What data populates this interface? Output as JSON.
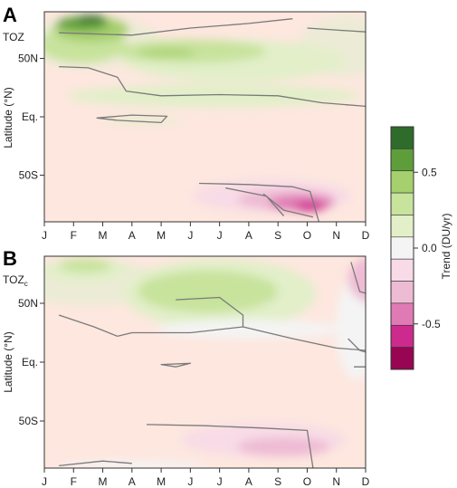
{
  "chart_data": [
    {
      "type": "heatmap",
      "panel_label": "A",
      "variable": "TOZ",
      "variable_sub": "",
      "ylabel": "Latitude (°N)",
      "x_tick_labels": [
        "J",
        "F",
        "M",
        "A",
        "M",
        "J",
        "J",
        "A",
        "S",
        "O",
        "N",
        "D"
      ],
      "y_tick_labels": [
        "50N",
        "Eq.",
        "50S"
      ],
      "blobs": [
        {
          "color": "#ecebd6",
          "cx": 1.5,
          "cy": 64,
          "rx": 2.5,
          "ry": 22
        },
        {
          "color": "#ecebd6",
          "cx": 10.3,
          "cy": 60,
          "rx": 1.6,
          "ry": 26
        },
        {
          "color": "#e2efc9",
          "cx": 6.5,
          "cy": 48,
          "rx": 3.8,
          "ry": 18
        },
        {
          "color": "#e2efc9",
          "cx": 5.8,
          "cy": 18,
          "rx": 5.0,
          "ry": 10
        },
        {
          "color": "#c7e39c",
          "cx": 5.0,
          "cy": 56,
          "rx": 2.6,
          "ry": 10
        },
        {
          "color": "#c7e39c",
          "cx": 1.3,
          "cy": 62,
          "rx": 1.5,
          "ry": 16
        },
        {
          "color": "#a6cf6d",
          "cx": 1.6,
          "cy": 75,
          "rx": 1.3,
          "ry": 11
        },
        {
          "color": "#5e9e3a",
          "cx": 1.3,
          "cy": 80,
          "rx": 0.9,
          "ry": 6
        },
        {
          "color": "#2f6b2a",
          "cx": 1.6,
          "cy": 84,
          "rx": 0.5,
          "ry": 3
        },
        {
          "color": "#a6cf6d",
          "cx": 4.2,
          "cy": 55,
          "rx": 1.0,
          "ry": 3
        },
        {
          "color": "#e2efc9",
          "cx": 3.4,
          "cy": -3,
          "rx": 1.3,
          "ry": 2.5
        },
        {
          "color": "#f8dbe6",
          "cx": 7.8,
          "cy": -68,
          "rx": 2.7,
          "ry": 14
        },
        {
          "color": "#eebbd4",
          "cx": 8.3,
          "cy": -71,
          "rx": 1.7,
          "ry": 9
        },
        {
          "color": "#e07ab5",
          "cx": 8.8,
          "cy": -74,
          "rx": 1.1,
          "ry": 7
        },
        {
          "color": "#cc2a8c",
          "cx": 9.1,
          "cy": -77,
          "rx": 0.5,
          "ry": 4
        }
      ],
      "contours": [
        [
          [
            0.5,
            72
          ],
          [
            3,
            70
          ],
          [
            5,
            76
          ],
          [
            7,
            80
          ],
          [
            8.5,
            84
          ]
        ],
        [
          [
            9,
            76
          ],
          [
            10.2,
            74
          ],
          [
            11.5,
            72
          ]
        ],
        [
          [
            0.5,
            43
          ],
          [
            1.5,
            42
          ],
          [
            2.5,
            34
          ],
          [
            2.8,
            22
          ],
          [
            4,
            18
          ],
          [
            6,
            19
          ],
          [
            8,
            18
          ],
          [
            9.5,
            12
          ],
          [
            11.5,
            8
          ]
        ],
        [
          [
            4,
            -5
          ],
          [
            2.5,
            -3
          ],
          [
            1.8,
            -1
          ],
          [
            3,
            1.5
          ],
          [
            4.2,
            0.5
          ],
          [
            4,
            -5
          ]
        ],
        [
          [
            5.3,
            -57
          ],
          [
            7,
            -58
          ],
          [
            8.5,
            -60
          ],
          [
            9.1,
            -64
          ],
          [
            9.4,
            -90
          ]
        ],
        [
          [
            6.2,
            -61
          ],
          [
            7.6,
            -68
          ],
          [
            8.2,
            -85
          ]
        ],
        [
          [
            7.5,
            -66
          ],
          [
            8.2,
            -80
          ],
          [
            9.2,
            -86
          ]
        ]
      ]
    },
    {
      "type": "heatmap",
      "panel_label": "B",
      "variable": "TOZ",
      "variable_sub": "c",
      "ylabel": "Latitude (°N)",
      "x_tick_labels": [
        "J",
        "F",
        "M",
        "A",
        "M",
        "J",
        "J",
        "A",
        "S",
        "O",
        "N",
        "D"
      ],
      "y_tick_labels": [
        "50N",
        "Eq.",
        "50S"
      ],
      "blobs": [
        {
          "color": "#ecebd6",
          "cx": 1.5,
          "cy": 68,
          "rx": 2.6,
          "ry": 20
        },
        {
          "color": "#e2efc9",
          "cx": 1.4,
          "cy": 78,
          "rx": 1.5,
          "ry": 10
        },
        {
          "color": "#c7e39c",
          "cx": 1.4,
          "cy": 82,
          "rx": 0.9,
          "ry": 6
        },
        {
          "color": "#e2efc9",
          "cx": 6.0,
          "cy": 58,
          "rx": 3.3,
          "ry": 30
        },
        {
          "color": "#c7e39c",
          "cx": 5.6,
          "cy": 60,
          "rx": 2.4,
          "ry": 18
        },
        {
          "color": "#f4f4f4",
          "cx": 7.0,
          "cy": 28,
          "rx": 3.2,
          "ry": 8
        },
        {
          "color": "#f4f4f4",
          "cx": 10.7,
          "cy": 30,
          "rx": 0.7,
          "ry": 45
        },
        {
          "color": "#eebbd4",
          "cx": 11.3,
          "cy": 70,
          "rx": 0.9,
          "ry": 20
        },
        {
          "color": "#e07ab5",
          "cx": 11.8,
          "cy": 75,
          "rx": 0.5,
          "ry": 14
        },
        {
          "color": "#f8dbe6",
          "cx": 7.5,
          "cy": -66,
          "rx": 2.8,
          "ry": 14
        },
        {
          "color": "#eebbd4",
          "cx": 8.2,
          "cy": -72,
          "rx": 1.6,
          "ry": 8
        },
        {
          "color": "#f4f4f4",
          "cx": 3.0,
          "cy": -88,
          "rx": 2.5,
          "ry": 4
        }
      ],
      "contours": [
        [
          [
            4.5,
            53
          ],
          [
            6,
            55
          ],
          [
            6.8,
            40
          ],
          [
            6.8,
            30
          ],
          [
            5,
            25
          ],
          [
            3,
            25
          ],
          [
            2.5,
            22
          ]
        ],
        [
          [
            2.5,
            22
          ],
          [
            1.7,
            30
          ],
          [
            0.5,
            40
          ]
        ],
        [
          [
            6.8,
            30
          ],
          [
            8.5,
            20
          ],
          [
            10,
            12
          ],
          [
            11.5,
            9
          ]
        ],
        [
          [
            4.5,
            -4
          ],
          [
            4,
            -2
          ],
          [
            5,
            -1
          ],
          [
            4.5,
            -4
          ]
        ],
        [
          [
            11.5,
            -4
          ],
          [
            10.6,
            -4
          ]
        ],
        [
          [
            3.5,
            -53
          ],
          [
            5.5,
            -54
          ],
          [
            7.5,
            -56
          ],
          [
            9,
            -58
          ],
          [
            9.2,
            -90
          ]
        ],
        [
          [
            0.5,
            -88
          ],
          [
            2,
            -84
          ],
          [
            3,
            -86
          ]
        ],
        [
          [
            10.5,
            85
          ],
          [
            10.8,
            60
          ],
          [
            11.5,
            55
          ]
        ],
        [
          [
            10.4,
            20
          ],
          [
            10.8,
            10
          ],
          [
            11.5,
            5
          ]
        ]
      ]
    }
  ],
  "colorbar": {
    "label": "Trend (DU/yr)",
    "tick_labels": [
      "0.5",
      "0.0",
      "-0.5"
    ],
    "colors": [
      "#2f6b2a",
      "#5e9e3a",
      "#a6cf6d",
      "#c7e39c",
      "#e2efc9",
      "#f4f4f4",
      "#f8dbe6",
      "#eebbd4",
      "#e07ab5",
      "#cc2a8c",
      "#980552"
    ]
  }
}
